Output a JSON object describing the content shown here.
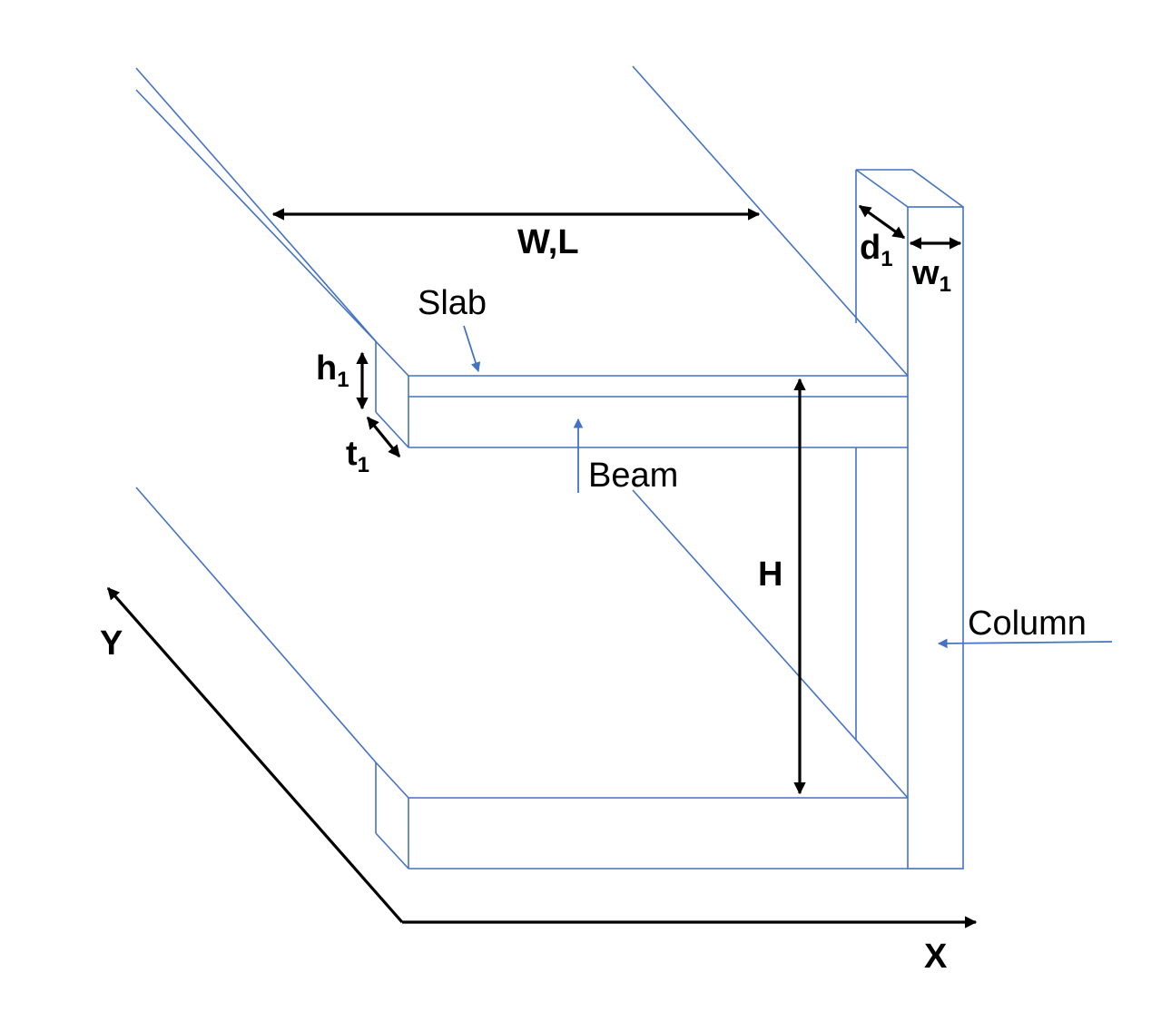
{
  "colors": {
    "structure": "#4472c4",
    "dimension": "#000000",
    "background": "#ffffff"
  },
  "labels": {
    "span": "W,L",
    "slab": "Slab",
    "beam": "Beam",
    "column": "Column",
    "height": "H",
    "beam_height": {
      "main": "h",
      "sub": "1"
    },
    "slab_thickness": {
      "main": "t",
      "sub": "1"
    },
    "column_depth": {
      "main": "d",
      "sub": "1"
    },
    "column_width": {
      "main": "w",
      "sub": "1"
    },
    "axis_x": "X",
    "axis_y": "Y"
  }
}
